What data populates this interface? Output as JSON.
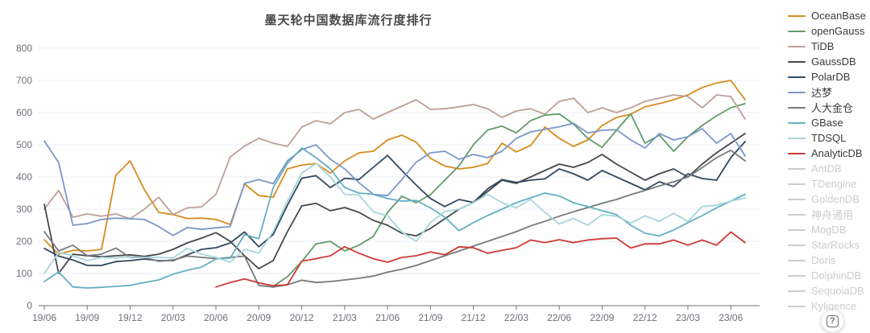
{
  "chart": {
    "title": "墨天轮中国数据库流行度排行"
  },
  "help": {
    "label": "?"
  },
  "chart_data": {
    "type": "line",
    "title": "墨天轮中国数据库流行度排行",
    "xlabel": "",
    "ylabel": "",
    "ylim": [
      0,
      800
    ],
    "y_ticks": [
      0,
      100,
      200,
      300,
      400,
      500,
      600,
      700,
      800
    ],
    "grid": true,
    "legend_position": "right",
    "x_tick_labels": [
      "19/06",
      "19/09",
      "19/12",
      "20/03",
      "20/06",
      "20/09",
      "20/12",
      "21/03",
      "21/06",
      "21/09",
      "21/12",
      "22/03",
      "22/06",
      "22/09",
      "22/12",
      "23/03",
      "23/06"
    ],
    "tick_step": 3,
    "colors": {
      "axis": "#6E7079",
      "grid": "#E9EEF4",
      "inactive": "#cccccc",
      "title": "#4a4a4a"
    },
    "series": [
      {
        "name": "OceanBase",
        "color": "#d98b1c",
        "active": true,
        "values": [
          205,
          160,
          172,
          170,
          175,
          405,
          450,
          360,
          290,
          283,
          271,
          272,
          268,
          252,
          378,
          342,
          337,
          425,
          437,
          442,
          412,
          450,
          475,
          480,
          515,
          530,
          508,
          458,
          434,
          425,
          430,
          442,
          505,
          478,
          498,
          555,
          520,
          495,
          515,
          560,
          585,
          595,
          618,
          628,
          640,
          655,
          678,
          692,
          700,
          640
        ]
      },
      {
        "name": "openGauss",
        "color": "#5f9c68",
        "active": true,
        "values": [
          null,
          null,
          null,
          null,
          null,
          null,
          null,
          null,
          null,
          null,
          null,
          null,
          null,
          null,
          null,
          null,
          60,
          90,
          137,
          192,
          200,
          170,
          188,
          215,
          290,
          340,
          320,
          345,
          390,
          435,
          500,
          546,
          558,
          537,
          575,
          592,
          596,
          565,
          520,
          492,
          545,
          596,
          505,
          530,
          480,
          525,
          560,
          590,
          615,
          628
        ]
      },
      {
        "name": "TiDB",
        "color": "#bd9f97",
        "active": true,
        "values": [
          300,
          358,
          275,
          285,
          278,
          285,
          270,
          300,
          337,
          283,
          304,
          307,
          346,
          462,
          496,
          520,
          505,
          495,
          555,
          575,
          565,
          600,
          610,
          580,
          600,
          620,
          640,
          610,
          612,
          618,
          625,
          612,
          585,
          605,
          612,
          595,
          635,
          645,
          600,
          615,
          600,
          615,
          635,
          645,
          655,
          650,
          615,
          655,
          650,
          580
        ]
      },
      {
        "name": "GaussDB",
        "color": "#44484c",
        "active": true,
        "values": [
          315,
          100,
          160,
          155,
          152,
          155,
          158,
          153,
          160,
          175,
          195,
          210,
          227,
          200,
          155,
          115,
          140,
          230,
          310,
          318,
          295,
          305,
          290,
          265,
          250,
          225,
          217,
          240,
          270,
          300,
          320,
          355,
          390,
          380,
          400,
          420,
          440,
          430,
          445,
          470,
          440,
          415,
          390,
          410,
          425,
          400,
          440,
          475,
          505,
          535
        ]
      },
      {
        "name": "PolarDB",
        "color": "#32485f",
        "active": true,
        "values": [
          178,
          154,
          142,
          125,
          125,
          137,
          140,
          145,
          140,
          140,
          158,
          175,
          180,
          195,
          229,
          183,
          221,
          312,
          396,
          404,
          367,
          396,
          392,
          430,
          467,
          420,
          375,
          333,
          308,
          330,
          321,
          363,
          392,
          383,
          390,
          394,
          425,
          410,
          390,
          420,
          400,
          380,
          360,
          385,
          370,
          410,
          395,
          390,
          460,
          510
        ]
      },
      {
        "name": "达梦",
        "color": "#7b97c9",
        "active": true,
        "values": [
          512,
          445,
          250,
          255,
          268,
          272,
          270,
          268,
          246,
          218,
          243,
          237,
          242,
          246,
          380,
          392,
          379,
          450,
          485,
          500,
          455,
          425,
          382,
          346,
          342,
          392,
          446,
          475,
          480,
          455,
          470,
          460,
          480,
          520,
          540,
          548,
          556,
          567,
          537,
          545,
          547,
          515,
          490,
          535,
          515,
          525,
          550,
          505,
          535,
          465
        ]
      },
      {
        "name": "人大金仓",
        "color": "#77797c",
        "active": true,
        "values": [
          230,
          170,
          188,
          155,
          160,
          179,
          150,
          150,
          138,
          142,
          154,
          150,
          146,
          150,
          154,
          63,
          58,
          65,
          79,
          72,
          75,
          80,
          85,
          92,
          104,
          113,
          125,
          140,
          155,
          170,
          185,
          200,
          215,
          230,
          248,
          262,
          278,
          292,
          305,
          318,
          330,
          345,
          358,
          372,
          385,
          400,
          429,
          460,
          483,
          450
        ]
      },
      {
        "name": "GBase",
        "color": "#64afc4",
        "active": true,
        "values": [
          75,
          105,
          58,
          55,
          57,
          60,
          63,
          72,
          80,
          98,
          110,
          120,
          145,
          148,
          221,
          208,
          367,
          442,
          490,
          460,
          425,
          367,
          350,
          346,
          333,
          325,
          327,
          304,
          275,
          233,
          258,
          280,
          300,
          320,
          335,
          350,
          341,
          320,
          308,
          295,
          283,
          250,
          225,
          217,
          235,
          258,
          280,
          304,
          325,
          346
        ]
      },
      {
        "name": "TDSQL",
        "color": "#a6d6dc",
        "active": true,
        "values": [
          100,
          165,
          155,
          140,
          150,
          148,
          152,
          150,
          150,
          148,
          178,
          160,
          150,
          135,
          175,
          163,
          230,
          325,
          412,
          442,
          400,
          346,
          344,
          292,
          279,
          229,
          200,
          258,
          292,
          300,
          320,
          346,
          320,
          304,
          330,
          290,
          254,
          271,
          250,
          283,
          278,
          257,
          279,
          262,
          287,
          262,
          308,
          312,
          325,
          335
        ]
      },
      {
        "name": "AnalyticDB",
        "color": "#cf3933",
        "active": true,
        "values": [
          null,
          null,
          null,
          null,
          null,
          null,
          null,
          null,
          null,
          null,
          null,
          null,
          58,
          72,
          83,
          71,
          62,
          65,
          138,
          146,
          155,
          183,
          163,
          146,
          135,
          150,
          155,
          167,
          158,
          183,
          180,
          163,
          172,
          180,
          204,
          196,
          205,
          196,
          204,
          208,
          210,
          179,
          192,
          192,
          204,
          188,
          204,
          188,
          229,
          196
        ]
      },
      {
        "name": "AntDB",
        "color": "#cccccc",
        "active": false,
        "values": null
      },
      {
        "name": "TDengine",
        "color": "#cccccc",
        "active": false,
        "values": null
      },
      {
        "name": "GoldenDB",
        "color": "#cccccc",
        "active": false,
        "values": null
      },
      {
        "name": "神舟通用",
        "color": "#cccccc",
        "active": false,
        "values": null
      },
      {
        "name": "MogDB",
        "color": "#cccccc",
        "active": false,
        "values": null
      },
      {
        "name": "StarRocks",
        "color": "#cccccc",
        "active": false,
        "values": null
      },
      {
        "name": "Doris",
        "color": "#cccccc",
        "active": false,
        "values": null
      },
      {
        "name": "DolphinDB",
        "color": "#cccccc",
        "active": false,
        "values": null
      },
      {
        "name": "SequoiaDB",
        "color": "#cccccc",
        "active": false,
        "values": null
      },
      {
        "name": "Kyligence",
        "color": "#cccccc",
        "active": false,
        "values": null
      }
    ]
  }
}
